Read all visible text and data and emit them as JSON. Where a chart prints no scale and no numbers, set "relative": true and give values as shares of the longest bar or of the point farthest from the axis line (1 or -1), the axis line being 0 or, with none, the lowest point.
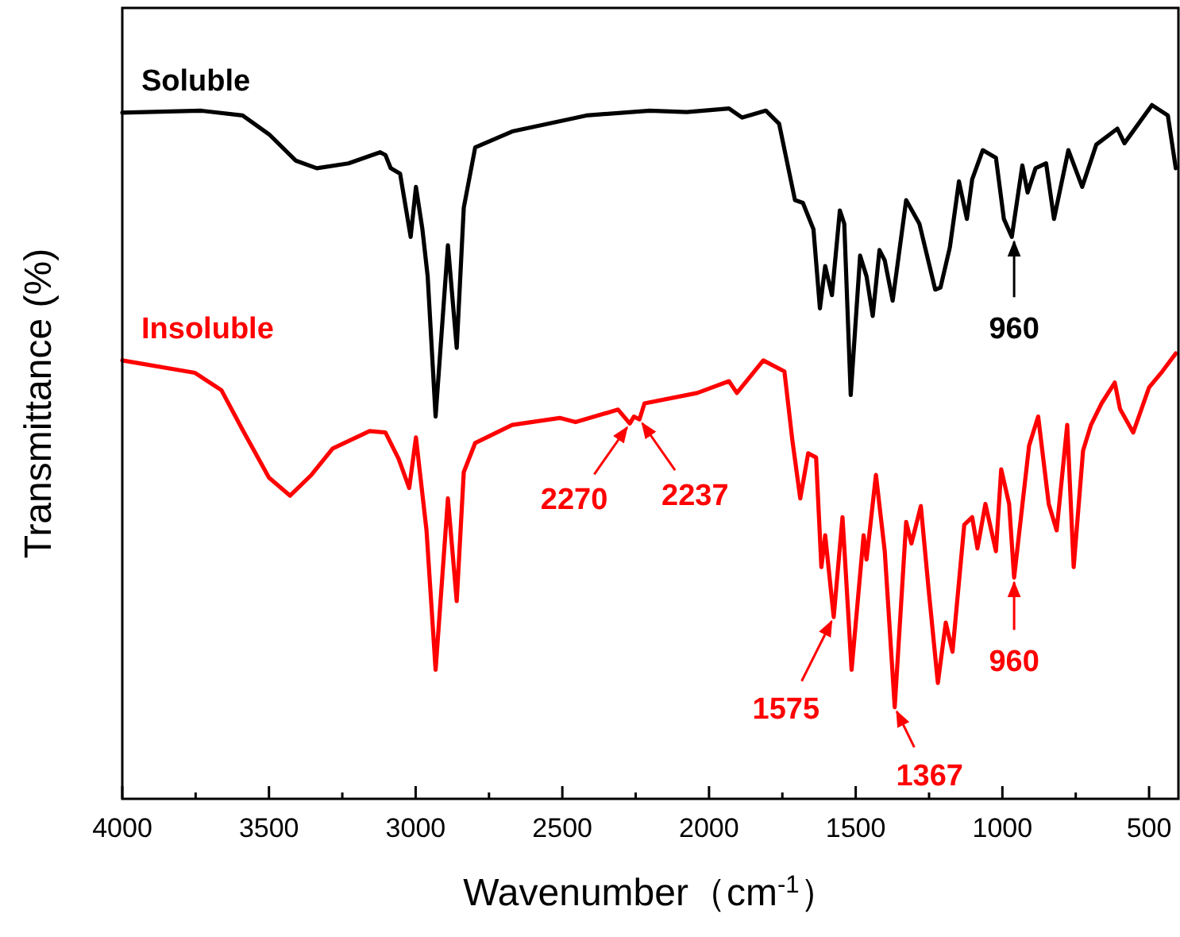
{
  "chart_data": {
    "type": "line",
    "relative": true,
    "xlabel": "Wavenumber（cm$^{-1}$）",
    "ylabel": "Transmittance (%)",
    "xlim": [
      4000,
      400
    ],
    "xticks": [
      4000,
      {
        "value": 3750,
        "label": null
      },
      3500,
      {
        "value": 3250,
        "label": null
      },
      3000,
      {
        "value": 2750,
        "label": null
      },
      2500,
      {
        "value": 2250,
        "label": null
      },
      2000,
      {
        "value": 1750,
        "label": null
      },
      1500,
      {
        "value": 1250,
        "label": null
      },
      1000,
      {
        "value": 750,
        "label": null
      },
      500
    ],
    "grid": false,
    "marker": "none",
    "line_style": "solid",
    "series": [
      {
        "name": "Soluble",
        "color": "#000000",
        "x": [
          4000,
          3734,
          3590,
          3500,
          3409,
          3337,
          3229,
          3121,
          3103,
          3085,
          3053,
          3017,
          2999,
          2977,
          2959,
          2932,
          2890,
          2860,
          2836,
          2797,
          2671,
          2418,
          2202,
          2076,
          1932,
          1887,
          1806,
          1761,
          1707,
          1680,
          1644,
          1622,
          1604,
          1581,
          1554,
          1539,
          1517,
          1485,
          1463,
          1442,
          1419,
          1401,
          1374,
          1328,
          1283,
          1229,
          1211,
          1179,
          1148,
          1121,
          1103,
          1067,
          1022,
          995,
          968,
          932,
          914,
          887,
          851,
          824,
          775,
          728,
          680,
          608,
          584,
          490,
          436,
          409
        ],
        "values": [
          0.989,
          0.992,
          0.985,
          0.958,
          0.92,
          0.909,
          0.916,
          0.932,
          0.928,
          0.909,
          0.901,
          0.81,
          0.882,
          0.821,
          0.753,
          0.551,
          0.798,
          0.65,
          0.852,
          0.939,
          0.962,
          0.985,
          0.992,
          0.99,
          0.995,
          0.982,
          0.992,
          0.973,
          0.863,
          0.859,
          0.821,
          0.707,
          0.768,
          0.726,
          0.848,
          0.829,
          0.582,
          0.783,
          0.753,
          0.696,
          0.791,
          0.776,
          0.718,
          0.863,
          0.829,
          0.734,
          0.737,
          0.795,
          0.89,
          0.836,
          0.893,
          0.935,
          0.924,
          0.836,
          0.81,
          0.913,
          0.874,
          0.909,
          0.916,
          0.836,
          0.935,
          0.882,
          0.943,
          0.966,
          0.945,
          1.0,
          0.985,
          0.909
        ]
      },
      {
        "name": "Insoluble",
        "color": "#ff0000",
        "x": [
          4000,
          3752,
          3662,
          3590,
          3500,
          3428,
          3355,
          3283,
          3157,
          3103,
          3058,
          3022,
          2999,
          2963,
          2932,
          2890,
          2860,
          2836,
          2797,
          2671,
          2509,
          2455,
          2310,
          2270,
          2256,
          2237,
          2220,
          2040,
          1932,
          1905,
          1815,
          1743,
          1716,
          1689,
          1662,
          1635,
          1617,
          1604,
          1575,
          1545,
          1514,
          1473,
          1463,
          1431,
          1401,
          1367,
          1328,
          1310,
          1278,
          1251,
          1220,
          1193,
          1170,
          1130,
          1103,
          1085,
          1058,
          1022,
          1004,
          977,
          960,
          909,
          878,
          842,
          815,
          779,
          757,
          725,
          698,
          662,
          617,
          599,
          554,
          500,
          455,
          409
        ],
        "values": [
          0.632,
          0.614,
          0.589,
          0.532,
          0.463,
          0.437,
          0.467,
          0.505,
          0.53,
          0.528,
          0.49,
          0.448,
          0.521,
          0.387,
          0.186,
          0.433,
          0.285,
          0.471,
          0.513,
          0.539,
          0.549,
          0.543,
          0.561,
          0.541,
          0.551,
          0.547,
          0.57,
          0.585,
          0.602,
          0.585,
          0.632,
          0.616,
          0.517,
          0.433,
          0.498,
          0.492,
          0.334,
          0.38,
          0.262,
          0.406,
          0.186,
          0.38,
          0.345,
          0.467,
          0.357,
          0.132,
          0.399,
          0.368,
          0.422,
          0.3,
          0.167,
          0.254,
          0.212,
          0.395,
          0.406,
          0.361,
          0.425,
          0.357,
          0.475,
          0.425,
          0.319,
          0.509,
          0.551,
          0.425,
          0.387,
          0.539,
          0.334,
          0.502,
          0.539,
          0.57,
          0.6,
          0.562,
          0.528,
          0.593,
          0.616,
          0.642
        ]
      }
    ],
    "annotations": [
      {
        "text": "960",
        "x": 960,
        "y": 0.81
      },
      {
        "text": "2270",
        "x": 2270,
        "y": 0.541
      },
      {
        "text": "2237",
        "x": 2237,
        "y": 0.547
      },
      {
        "text": "1575",
        "x": 1575,
        "y": 0.262
      },
      {
        "text": "1367",
        "x": 1367,
        "y": 0.132
      },
      {
        "text": "960",
        "x": 960,
        "y": 0.319
      }
    ]
  }
}
